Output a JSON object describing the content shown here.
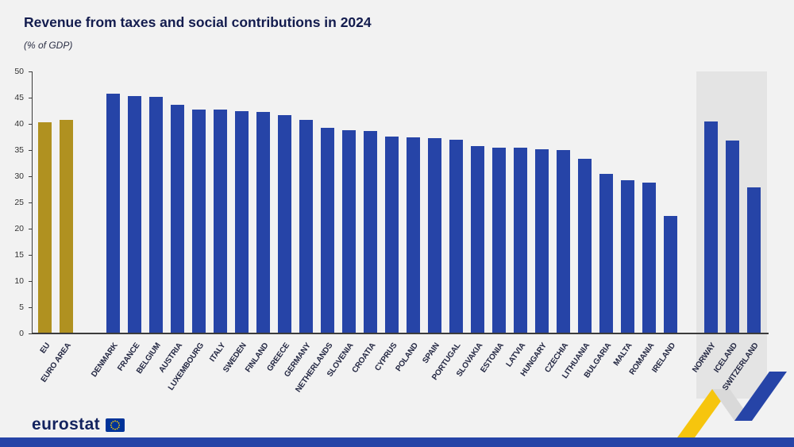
{
  "chart_data": {
    "type": "bar",
    "title": "Revenue from taxes and social contributions in 2024",
    "subtitle": "(% of GDP)",
    "unit": "% of GDP",
    "ylim": [
      0,
      50
    ],
    "yticks": [
      0,
      5,
      10,
      15,
      20,
      25,
      30,
      35,
      40,
      45,
      50
    ],
    "grid": false,
    "legend": "none",
    "groups": [
      {
        "name": "eu-aggregates",
        "color_key": "eu_bar",
        "highlight": false,
        "bars": [
          {
            "label": "EU",
            "value": 40.3
          },
          {
            "label": "EURO AREA",
            "value": 40.8
          }
        ]
      },
      {
        "name": "member-states",
        "color_key": "member_bar",
        "highlight": false,
        "bars": [
          {
            "label": "DENMARK",
            "value": 45.8
          },
          {
            "label": "FRANCE",
            "value": 45.3
          },
          {
            "label": "BELGIUM",
            "value": 45.1
          },
          {
            "label": "AUSTRIA",
            "value": 43.7
          },
          {
            "label": "LUXEMBOURG",
            "value": 42.8
          },
          {
            "label": "ITALY",
            "value": 42.7
          },
          {
            "label": "SWEDEN",
            "value": 42.5
          },
          {
            "label": "FINLAND",
            "value": 42.3
          },
          {
            "label": "GREECE",
            "value": 41.6
          },
          {
            "label": "GERMANY",
            "value": 40.8
          },
          {
            "label": "NETHERLANDS",
            "value": 39.3
          },
          {
            "label": "SLOVENIA",
            "value": 38.8
          },
          {
            "label": "CROATIA",
            "value": 38.6
          },
          {
            "label": "CYPRUS",
            "value": 37.6
          },
          {
            "label": "POLAND",
            "value": 37.5
          },
          {
            "label": "SPAIN",
            "value": 37.3
          },
          {
            "label": "PORTUGAL",
            "value": 37.0
          },
          {
            "label": "SLOVAKIA",
            "value": 35.8
          },
          {
            "label": "ESTONIA",
            "value": 35.4
          },
          {
            "label": "LATVIA",
            "value": 35.4
          },
          {
            "label": "HUNGARY",
            "value": 35.2
          },
          {
            "label": "CZECHIA",
            "value": 35.0
          },
          {
            "label": "LITHUANIA",
            "value": 33.3
          },
          {
            "label": "BULGARIA",
            "value": 30.5
          },
          {
            "label": "MALTA",
            "value": 29.3
          },
          {
            "label": "ROMANIA",
            "value": 28.8
          },
          {
            "label": "IRELAND",
            "value": 22.4
          }
        ]
      },
      {
        "name": "efta",
        "color_key": "member_bar",
        "highlight": true,
        "bars": [
          {
            "label": "NORWAY",
            "value": 40.4
          },
          {
            "label": "ICELAND",
            "value": 36.8
          },
          {
            "label": "SWITZERLAND",
            "value": 27.9
          }
        ]
      }
    ]
  },
  "colors": {
    "page_bg": "#f2f2f2",
    "efta_band": "#e4e4e4",
    "eu_bar": "#b09120",
    "member_bar": "#2644a7",
    "bottom_strip": "#2644a7",
    "ribbon_yellow": "#f6c50e",
    "ribbon_grey": "#d9d9d9",
    "ribbon_blue": "#2644a7",
    "flag_blue": "#003399",
    "flag_yellow": "#ffcc00"
  },
  "footer": {
    "logo_text": "eurostat"
  }
}
